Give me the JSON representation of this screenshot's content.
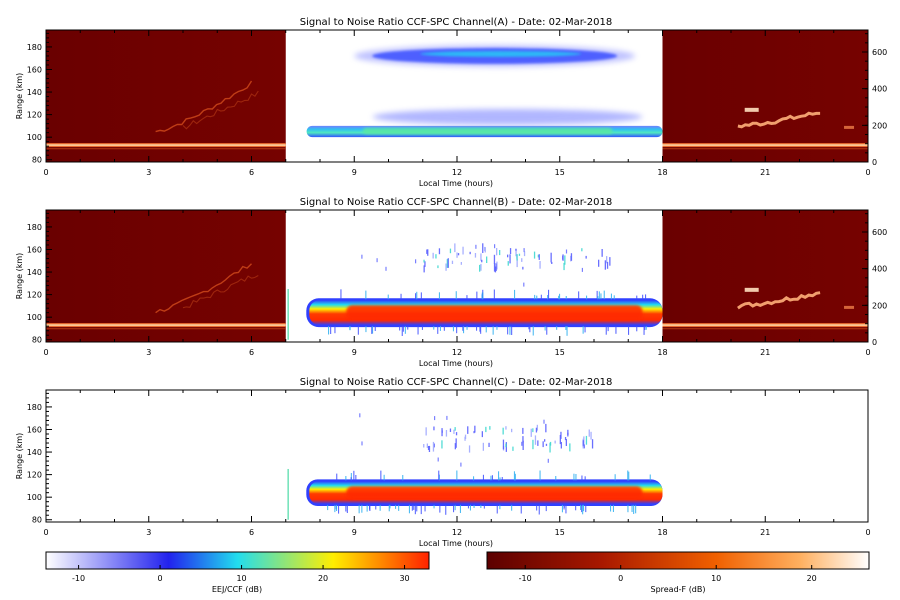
{
  "chart_data": [
    {
      "type": "heatmap",
      "title": "Signal to Noise Ratio CCF-SPC Channel(A) - Date: 02-Mar-2018",
      "xlabel": "Local Time (hours)",
      "ylabel": "Range (km)",
      "xlim": [
        0,
        24
      ],
      "xticks": [
        "0",
        "3",
        "6",
        "9",
        "12",
        "15",
        "18",
        "21",
        "0"
      ],
      "ylim": [
        78,
        195
      ],
      "yticks": [
        "80",
        "100",
        "120",
        "140",
        "160",
        "180"
      ],
      "y2lim": [
        0,
        720
      ],
      "y2ticks": [
        "0",
        "200",
        "400",
        "600"
      ],
      "night_panels": true,
      "features": {
        "night_layer": {
          "range_km": 93,
          "intensity_db": 12
        },
        "night_traces": [
          {
            "t_start": 3.2,
            "t_end": 6.0,
            "r_start": 105,
            "r_end": 148
          },
          {
            "t_start": 20.2,
            "t_end": 22.6,
            "r_start": 110,
            "r_end": 122
          }
        ],
        "eej_lower": {
          "t_start": 7.2,
          "t_end": 18.0,
          "r_center": 105,
          "thickness_km": 10,
          "peak_db": 10
        },
        "eej_upper": {
          "t_start": 9.0,
          "t_end": 17.2,
          "r_center": 172,
          "thickness_km": 14,
          "peak_db": 4
        }
      }
    },
    {
      "type": "heatmap",
      "title": "Signal to Noise Ratio CCF-SPC Channel(B) - Date: 02-Mar-2018",
      "xlabel": "Local Time (hours)",
      "ylabel": "Range (km)",
      "xlim": [
        0,
        24
      ],
      "xticks": [
        "0",
        "3",
        "6",
        "9",
        "12",
        "15",
        "18",
        "21",
        "0"
      ],
      "ylim": [
        78,
        195
      ],
      "yticks": [
        "80",
        "100",
        "120",
        "140",
        "160",
        "180"
      ],
      "y2lim": [
        0,
        720
      ],
      "y2ticks": [
        "0",
        "200",
        "400",
        "600"
      ],
      "night_panels": true,
      "features": {
        "night_layer": {
          "range_km": 93,
          "intensity_db": 12
        },
        "night_traces": [
          {
            "t_start": 3.2,
            "t_end": 6.0,
            "r_start": 105,
            "r_end": 148
          },
          {
            "t_start": 20.2,
            "t_end": 22.6,
            "r_start": 110,
            "r_end": 122
          }
        ],
        "eej_lower": {
          "t_start": 7.6,
          "t_end": 18.0,
          "r_center": 104,
          "thickness_km": 22,
          "peak_db": 30
        },
        "eej_upper": {
          "t_start": 11.0,
          "t_end": 16.5,
          "r_center": 152,
          "thickness_km": 12,
          "peak_db": 2
        }
      }
    },
    {
      "type": "heatmap",
      "title": "Signal to Noise Ratio CCF-SPC Channel(C) - Date: 02-Mar-2018",
      "xlabel": "Local Time (hours)",
      "ylabel": "Range (km)",
      "xlim": [
        0,
        24
      ],
      "xticks": [
        "0",
        "3",
        "6",
        "9",
        "12",
        "15",
        "18",
        "21",
        "0"
      ],
      "ylim": [
        78,
        195
      ],
      "yticks": [
        "80",
        "100",
        "120",
        "140",
        "160",
        "180"
      ],
      "night_panels": false,
      "features": {
        "eej_lower": {
          "t_start": 7.6,
          "t_end": 18.0,
          "r_center": 104,
          "thickness_km": 20,
          "peak_db": 30
        },
        "eej_upper": {
          "t_start": 11.0,
          "t_end": 16.0,
          "r_center": 152,
          "thickness_km": 12,
          "peak_db": 2
        }
      }
    }
  ],
  "colorbars": [
    {
      "label": "EEJ/CCF (dB)",
      "ticks": [
        "-10",
        "0",
        "10",
        "20",
        "30"
      ],
      "range": [
        -14,
        33
      ],
      "colors": [
        "#ffffff",
        "#2222ee",
        "#22ddee",
        "#ffee00",
        "#ff2200"
      ]
    },
    {
      "label": "Spread-F (dB)",
      "ticks": [
        "-10",
        "0",
        "10",
        "20"
      ],
      "range": [
        -14,
        26
      ],
      "colors": [
        "#5c0000",
        "#a81800",
        "#f06000",
        "#ffb060",
        "#ffffff"
      ]
    }
  ]
}
